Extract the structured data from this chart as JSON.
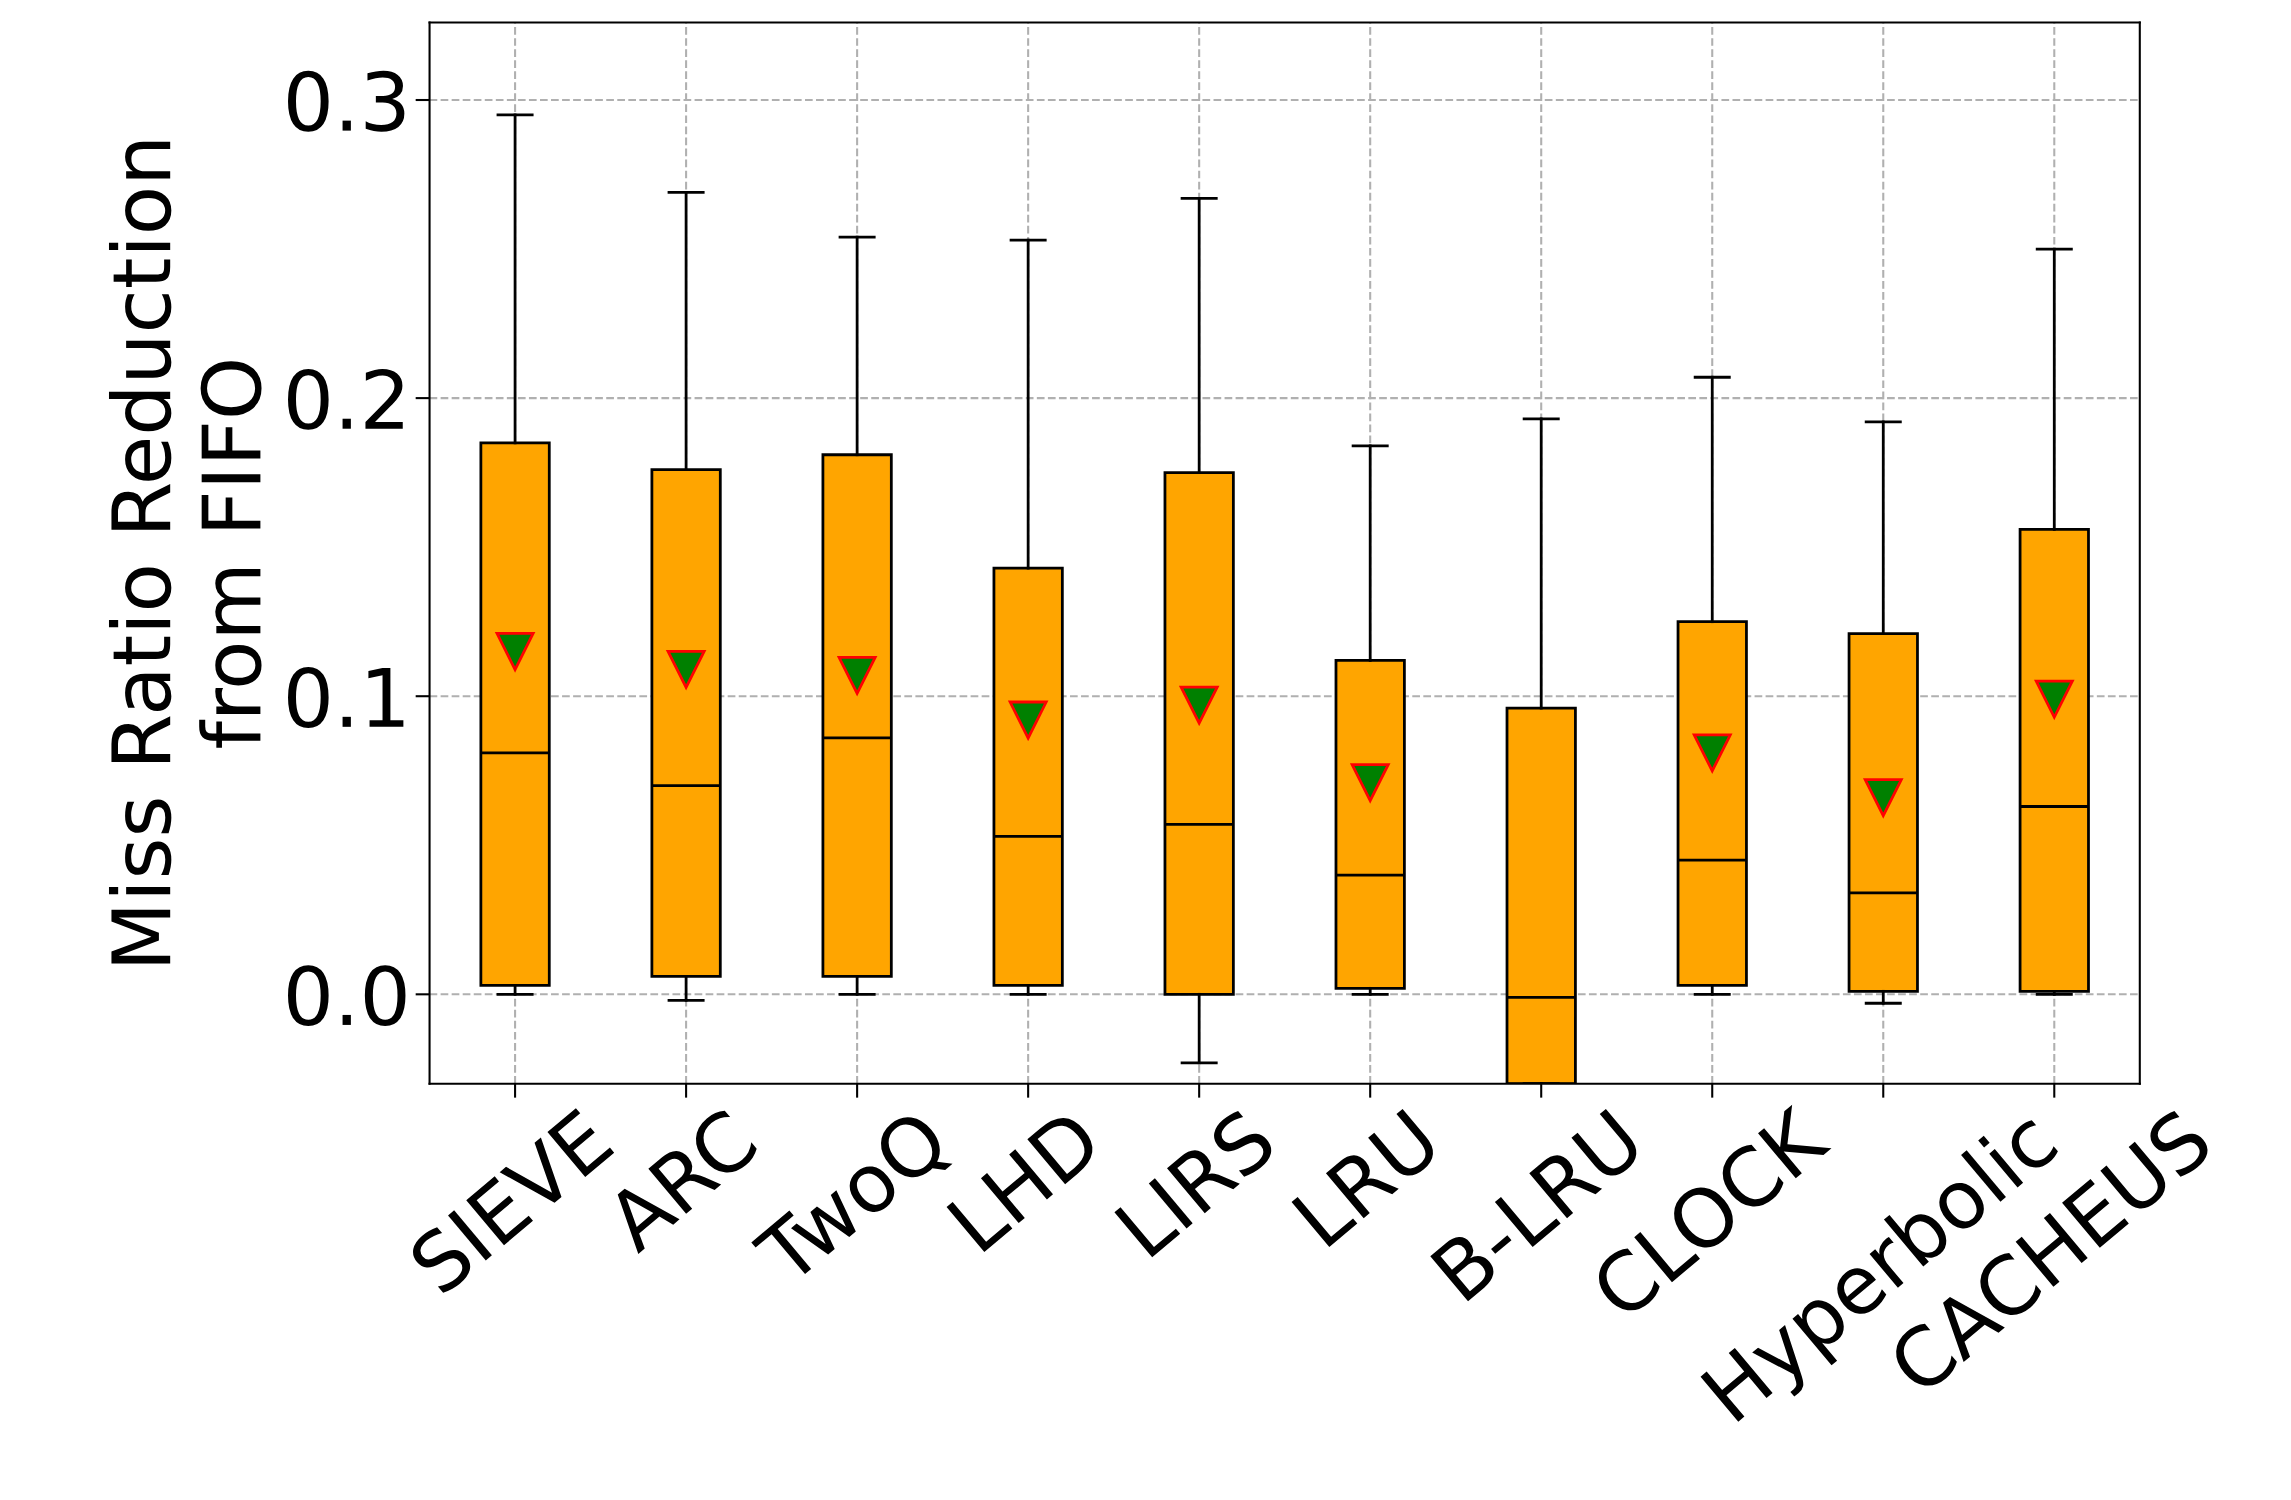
{
  "chart_data": {
    "type": "box",
    "ylabel": "Miss Ratio Reduction\nfrom FIFO",
    "categories": [
      "SIEVE",
      "ARC",
      "TwoQ",
      "LHD",
      "LIRS",
      "LRU",
      "B-LRU",
      "CLOCK",
      "Hyperbolic",
      "CACHEUS"
    ],
    "series": [
      {
        "color": "#ffa500",
        "boxes": [
          {
            "low": 0.0,
            "q1": 0.003,
            "median": 0.081,
            "q3": 0.185,
            "high": 0.295,
            "mean": 0.115
          },
          {
            "low": -0.002,
            "q1": 0.006,
            "median": 0.07,
            "q3": 0.176,
            "high": 0.269,
            "mean": 0.109
          },
          {
            "low": 0.0,
            "q1": 0.006,
            "median": 0.086,
            "q3": 0.181,
            "high": 0.254,
            "mean": 0.107
          },
          {
            "low": 0.0,
            "q1": 0.003,
            "median": 0.053,
            "q3": 0.143,
            "high": 0.253,
            "mean": 0.092
          },
          {
            "low": -0.023,
            "q1": 0.0,
            "median": 0.057,
            "q3": 0.175,
            "high": 0.267,
            "mean": 0.097
          },
          {
            "low": 0.0,
            "q1": 0.002,
            "median": 0.04,
            "q3": 0.112,
            "high": 0.184,
            "mean": 0.071
          },
          {
            "low": -0.03,
            "q1": -0.03,
            "median": -0.001,
            "q3": 0.096,
            "high": 0.193
          },
          {
            "low": 0.0,
            "q1": 0.003,
            "median": 0.045,
            "q3": 0.125,
            "high": 0.207,
            "mean": 0.081
          },
          {
            "low": -0.003,
            "q1": 0.001,
            "median": 0.034,
            "q3": 0.121,
            "high": 0.192,
            "mean": 0.066
          },
          {
            "low": 0.0,
            "q1": 0.001,
            "median": 0.063,
            "q3": 0.156,
            "high": 0.25,
            "mean": 0.099
          }
        ]
      }
    ],
    "ylim": [
      -0.03,
      0.326
    ],
    "yticks": [
      "0.0",
      0.1,
      0.2,
      0.3
    ],
    "grid": true,
    "marker": "triangle"
  }
}
